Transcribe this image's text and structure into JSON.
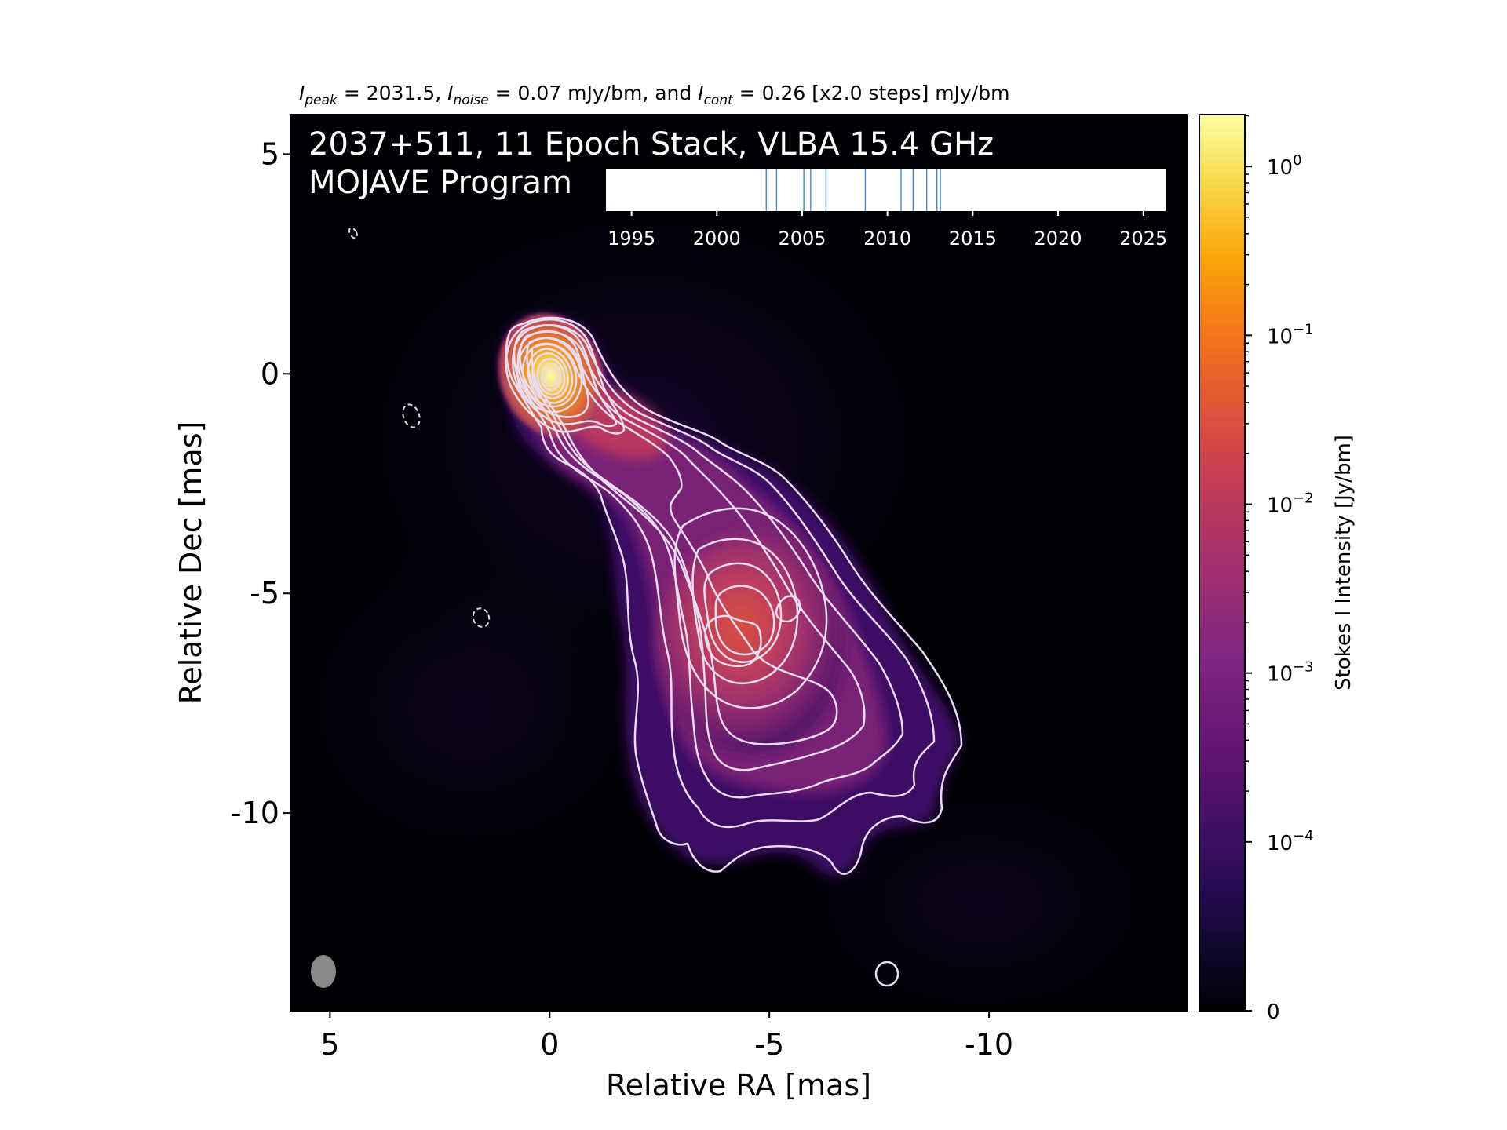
{
  "header": {
    "peak_label": "I",
    "peak_sub": "peak",
    "peak_value": " = 2031.5, ",
    "noise_label": "I",
    "noise_sub": "noise",
    "noise_value": " = 0.07 mJy/bm, and ",
    "cont_label": "I",
    "cont_sub": "cont",
    "cont_value": " = 0.26 [x2.0 steps] mJy/bm"
  },
  "chart_data": {
    "type": "heatmap",
    "image_title_line1": "2037+511, 11 Epoch Stack, VLBA 15.4 GHz",
    "image_title_line2": "MOJAVE Program",
    "xlabel": "Relative RA [mas]",
    "ylabel": "Relative Dec [mas]",
    "xlim": [
      5.9,
      -14.5
    ],
    "ylim": [
      -14.5,
      5.9
    ],
    "x_ticks": [
      5,
      0,
      -5,
      -10
    ],
    "x_tick_labels": [
      "5",
      "0",
      "-5",
      "-10"
    ],
    "y_ticks": [
      5,
      0,
      -5,
      -10
    ],
    "y_tick_labels": [
      "5",
      "0",
      "-5",
      "-10"
    ],
    "colormap": "inferno",
    "colorbar": {
      "label": "Stokes I Intensity [Jy/bm]",
      "scale": "symlog",
      "range": [
        0,
        2.03
      ],
      "ticks": [
        1,
        0.1,
        0.01,
        0.001,
        0.0001,
        0
      ],
      "tick_bases": [
        "10",
        "10",
        "10",
        "10",
        "10",
        "0"
      ],
      "tick_exps": [
        "0",
        "−1",
        "−2",
        "−3",
        "−4",
        ""
      ]
    },
    "timeline": {
      "xlim": [
        1993.5,
        2026.3
      ],
      "ticks": [
        1995,
        2000,
        2005,
        2010,
        2015,
        2020,
        2025
      ],
      "tick_labels": [
        "1995",
        "2000",
        "2005",
        "2010",
        "2015",
        "2020",
        "2025"
      ],
      "epochs": [
        2002.9,
        2003.5,
        2005.1,
        2005.5,
        2006.4,
        2008.7,
        2010.8,
        2011.5,
        2012.3,
        2012.9,
        2013.1
      ],
      "epoch_color": "#4d8fd1"
    },
    "features": {
      "core": {
        "x": 0,
        "y": 0,
        "peak_jy": 2.03
      },
      "knot_near": {
        "x": -1.6,
        "y": -1.3
      },
      "lobe": {
        "x": -4.3,
        "y": -6.0
      },
      "knot_lobe": {
        "x": -5.4,
        "y": -5.5
      },
      "beam": {
        "x": 5.2,
        "y": -13.7,
        "major": 0.9,
        "minor": 0.6
      }
    },
    "colors": {
      "background": "#000004",
      "contour": "#e9dcf0",
      "beam": "#8a8a8a",
      "timeline_bg": "#ffffff"
    }
  }
}
